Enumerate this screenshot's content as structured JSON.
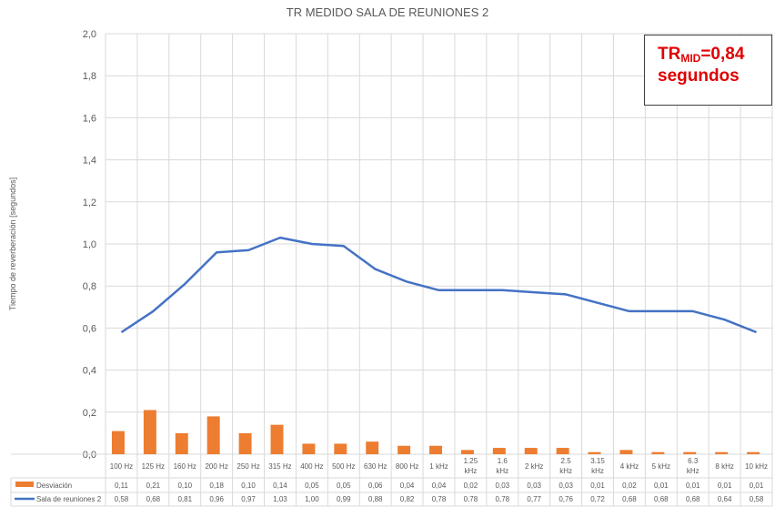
{
  "chart_data": {
    "type": "bar+line",
    "title": "TR MEDIDO SALA DE REUNIONES 2",
    "ylabel": "Tiempo de reverberación [segundos]",
    "ylim": [
      0,
      2.0
    ],
    "yticks": [
      "0,0",
      "0,2",
      "0,4",
      "0,6",
      "0,8",
      "1,0",
      "1,2",
      "1,4",
      "1,6",
      "1,8",
      "2,0"
    ],
    "categories": [
      "100 Hz",
      "125 Hz",
      "160 Hz",
      "200 Hz",
      "250 Hz",
      "315 Hz",
      "400 Hz",
      "500 Hz",
      "630 Hz",
      "800 Hz",
      "1 kHz",
      "1.25 kHz",
      "1.6 kHz",
      "2 kHz",
      "2.5 kHz",
      "3.15 kHz",
      "4 kHz",
      "5 kHz",
      "6.3 kHz",
      "8 kHz",
      "10 kHz"
    ],
    "series": [
      {
        "name": "Desviación",
        "kind": "bar",
        "color": "#ED7D31",
        "values": [
          0.11,
          0.21,
          0.1,
          0.18,
          0.1,
          0.14,
          0.05,
          0.05,
          0.06,
          0.04,
          0.04,
          0.02,
          0.03,
          0.03,
          0.03,
          0.01,
          0.02,
          0.01,
          0.01,
          0.01,
          0.01
        ],
        "labels": [
          "0,11",
          "0,21",
          "0,10",
          "0,18",
          "0,10",
          "0,14",
          "0,05",
          "0,05",
          "0,06",
          "0,04",
          "0,04",
          "0,02",
          "0,03",
          "0,03",
          "0,03",
          "0,01",
          "0,02",
          "0,01",
          "0,01",
          "0,01",
          "0,01"
        ]
      },
      {
        "name": "Sala de reuniones 2",
        "kind": "line",
        "color": "#4472C4",
        "values": [
          0.58,
          0.68,
          0.81,
          0.96,
          0.97,
          1.03,
          1.0,
          0.99,
          0.88,
          0.82,
          0.78,
          0.78,
          0.78,
          0.77,
          0.76,
          0.72,
          0.68,
          0.68,
          0.68,
          0.64,
          0.58
        ],
        "labels": [
          "0,58",
          "0,68",
          "0,81",
          "0,96",
          "0,97",
          "1,03",
          "1,00",
          "0,99",
          "0,88",
          "0,82",
          "0,78",
          "0,78",
          "0,78",
          "0,77",
          "0,76",
          "0,72",
          "0,68",
          "0,68",
          "0,68",
          "0,64",
          "0,58"
        ]
      }
    ],
    "grid": true,
    "legend": "data-table"
  },
  "annotation": {
    "prefix": "TR",
    "subscript": "MID",
    "value": "=0,84",
    "unit": "segundos"
  }
}
